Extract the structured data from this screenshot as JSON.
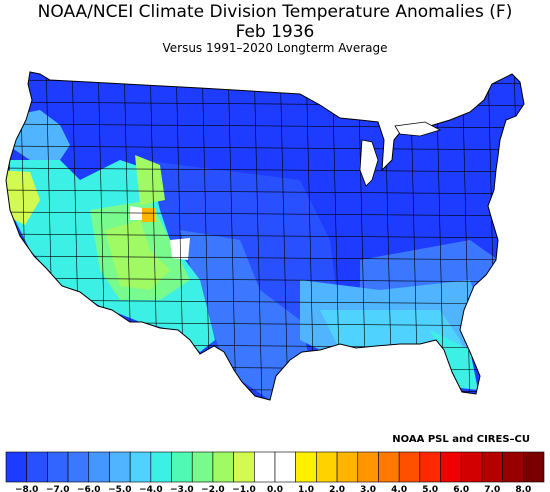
{
  "title": "NOAA/NCEI Climate Division Temperature Anomalies (F)",
  "subtitle": "Feb 1936",
  "caption": "Versus 1991–2020 Longterm Average",
  "credit": "NOAA PSL and CIRES–CU",
  "legend": {
    "colors": [
      "#1e3cff",
      "#2850ff",
      "#3264ff",
      "#3c78ff",
      "#4696ff",
      "#50b4ff",
      "#50d2ff",
      "#3cf0e6",
      "#50fab4",
      "#78fa8c",
      "#a0fa64",
      "#d2fa50",
      "#ffffff",
      "#ffffff",
      "#fff000",
      "#ffd200",
      "#ffb400",
      "#ff9600",
      "#ff7800",
      "#ff5000",
      "#ff2800",
      "#f00000",
      "#d20000",
      "#b40000",
      "#960000",
      "#7a0000"
    ],
    "ticks": [
      "−8.0",
      "−7.0",
      "−6.0",
      "−5.0",
      "−4.0",
      "−3.0",
      "−2.0",
      "−1.0",
      "0.0",
      "1.0",
      "2.0",
      "3.0",
      "4.0",
      "5.0",
      "6.0",
      "7.0",
      "8.0"
    ]
  },
  "map_colors": {
    "deep_blue": "#1e3cff",
    "blue": "#2850ff",
    "mid_blue": "#3c78ff",
    "light_blue": "#50b4ff",
    "cyan": "#50d2ff",
    "aqua": "#3cf0e6",
    "seafoam": "#50fab4",
    "green": "#78fa8c",
    "lime": "#a0fa64",
    "yellow_green": "#d2fa50",
    "orange": "#ffb400",
    "white": "#ffffff"
  }
}
